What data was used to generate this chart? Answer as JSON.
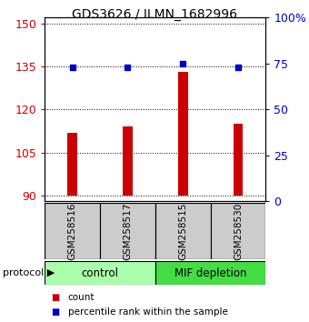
{
  "title": "GDS3626 / ILMN_1682996",
  "samples": [
    "GSM258516",
    "GSM258517",
    "GSM258515",
    "GSM258530"
  ],
  "bar_values": [
    112,
    114,
    133,
    115
  ],
  "bar_bottom": 90,
  "percentile_values": [
    73,
    73,
    75,
    73
  ],
  "bar_color": "#cc0000",
  "percentile_color": "#0000cc",
  "ylim_left": [
    88,
    152
  ],
  "ylim_right": [
    0,
    100
  ],
  "yticks_left": [
    90,
    105,
    120,
    135,
    150
  ],
  "yticks_right": [
    0,
    25,
    50,
    75,
    100
  ],
  "ytick_labels_right": [
    "0",
    "25",
    "50",
    "75",
    "100%"
  ],
  "groups": [
    {
      "label": "control",
      "color": "#aaffaa"
    },
    {
      "label": "MIF depletion",
      "color": "#44dd44"
    }
  ],
  "protocol_label": "protocol",
  "legend_items": [
    {
      "color": "#cc0000",
      "label": "count"
    },
    {
      "color": "#0000cc",
      "label": "percentile rank within the sample"
    }
  ],
  "sample_box_color": "#cccccc",
  "figsize": [
    3.4,
    3.54
  ],
  "dpi": 100
}
